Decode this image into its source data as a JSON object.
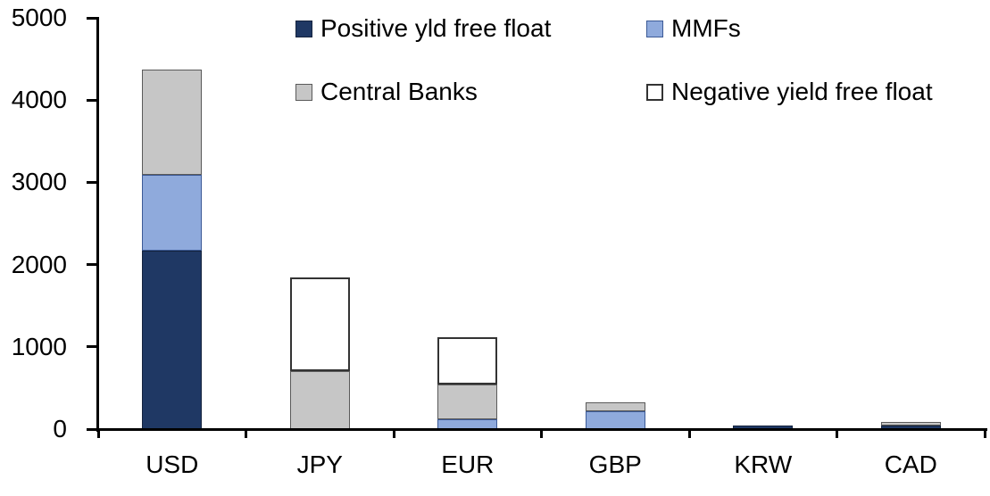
{
  "chart_data": {
    "type": "bar",
    "stacked": true,
    "title": "",
    "xlabel": "",
    "ylabel": "",
    "grid": false,
    "legend_position": "top",
    "categories": [
      "USD",
      "JPY",
      "EUR",
      "GBP",
      "KRW",
      "CAD"
    ],
    "ylim": [
      0,
      5000
    ],
    "yticks": [
      0,
      1000,
      2000,
      3000,
      4000,
      5000
    ],
    "series": [
      {
        "key": "positive-yld-free-float",
        "name": "Positive yld free float",
        "color": "#1F3864",
        "border_color": "#14233E",
        "border_width": 1,
        "values": [
          2170,
          0,
          0,
          0,
          45,
          40
        ]
      },
      {
        "key": "mmfs",
        "name": "MMFs",
        "color": "#8FAADC",
        "border_color": "#3C5A96",
        "border_width": 1,
        "values": [
          920,
          0,
          115,
          215,
          0,
          0
        ]
      },
      {
        "key": "central-banks",
        "name": "Central Banks",
        "color": "#C6C6C6",
        "border_color": "#5A5A5A",
        "border_width": 1,
        "values": [
          1280,
          700,
          425,
          115,
          0,
          45
        ]
      },
      {
        "key": "negative-yield-free-float",
        "name": "Negative yield free float",
        "color": "#FFFFFF",
        "border_color": "#333333",
        "border_width": 2,
        "values": [
          0,
          1145,
          575,
          0,
          0,
          0
        ]
      }
    ]
  },
  "legend": {
    "items": [
      {
        "label": "Positive yld free float"
      },
      {
        "label": "MMFs"
      },
      {
        "label": "Central Banks"
      },
      {
        "label": "Negative yield free float"
      }
    ]
  }
}
